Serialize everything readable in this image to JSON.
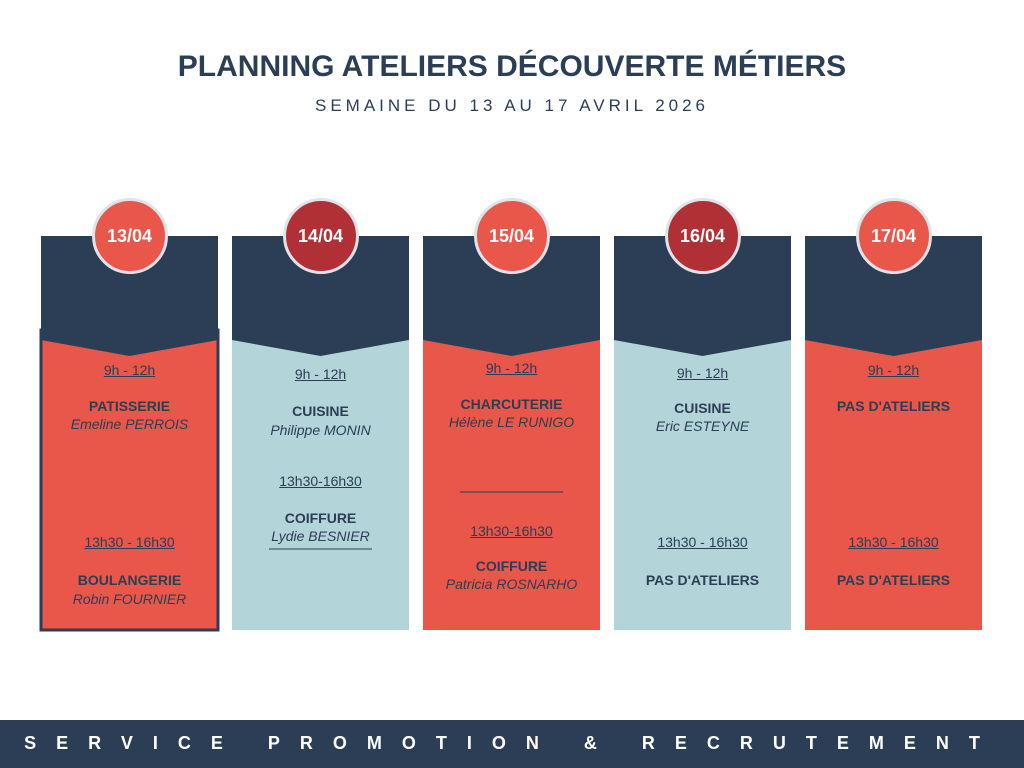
{
  "header": {
    "title": "PLANNING ATELIERS DÉCOUVERTE MÉTIERS",
    "subtitle": "SEMAINE DU 13 AU 17 AVRIL 2026"
  },
  "days": [
    {
      "date": "13/04",
      "morning": {
        "time": "9h - 12h",
        "workshop": "PATISSERIE",
        "trainer": "Emeline PERROIS"
      },
      "afternoon": {
        "time": "13h30 - 16h30",
        "workshop": "BOULANGERIE",
        "trainer": "Robin FOURNIER"
      }
    },
    {
      "date": "14/04",
      "morning": {
        "time": "9h - 12h",
        "workshop": "CUISINE",
        "trainer": "Philippe MONIN"
      },
      "afternoon": {
        "time": "13h30-16h30",
        "workshop": "COIFFURE",
        "trainer": "Lydie BESNIER"
      }
    },
    {
      "date": "15/04",
      "morning": {
        "time": "9h - 12h",
        "workshop": "CHARCUTERIE",
        "trainer": "Hélène LE RUNIGO"
      },
      "afternoon": {
        "time": "13h30-16h30",
        "workshop": "COIFFURE",
        "trainer": "Patricia ROSNARHO"
      }
    },
    {
      "date": "16/04",
      "morning": {
        "time": "9h - 12h",
        "workshop": "CUISINE",
        "trainer": "Eric ESTEYNE"
      },
      "afternoon": {
        "time": "13h30 - 16h30",
        "workshop": "PAS D'ATELIERS"
      }
    },
    {
      "date": "17/04",
      "morning": {
        "time": "9h - 12h",
        "workshop": "PAS D'ATELIERS"
      },
      "afternoon": {
        "time": "13h30 - 16h30",
        "workshop": "PAS D'ATELIERS"
      }
    }
  ],
  "footer": {
    "text": "SERVICE PROMOTION & RECRUTEMENT"
  }
}
